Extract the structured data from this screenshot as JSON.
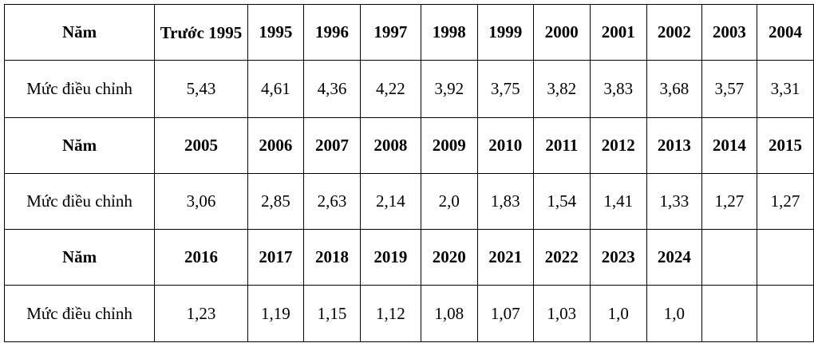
{
  "row_label_year": "Năm",
  "row_label_value": "Mức điều chỉnh",
  "blocks": [
    {
      "years": [
        "Trước 1995",
        "1995",
        "1996",
        "1997",
        "1998",
        "1999",
        "2000",
        "2001",
        "2002",
        "2003",
        "2004"
      ],
      "values": [
        "5,43",
        "4,61",
        "4,36",
        "4,22",
        "3,92",
        "3,75",
        "3,82",
        "3,83",
        "3,68",
        "3,57",
        "3,31"
      ]
    },
    {
      "years": [
        "2005",
        "2006",
        "2007",
        "2008",
        "2009",
        "2010",
        "2011",
        "2012",
        "2013",
        "2014",
        "2015"
      ],
      "values": [
        "3,06",
        "2,85",
        "2,63",
        "2,14",
        "2,0",
        "1,83",
        "1,54",
        "1,41",
        "1,33",
        "1,27",
        "1,27"
      ]
    },
    {
      "years": [
        "2016",
        "2017",
        "2018",
        "2019",
        "2020",
        "2021",
        "2022",
        "2023",
        "2024",
        "",
        ""
      ],
      "values": [
        "1,23",
        "1,19",
        "1,15",
        "1,12",
        "1,08",
        "1,07",
        "1,03",
        "1,0",
        "1,0",
        "",
        ""
      ]
    }
  ]
}
